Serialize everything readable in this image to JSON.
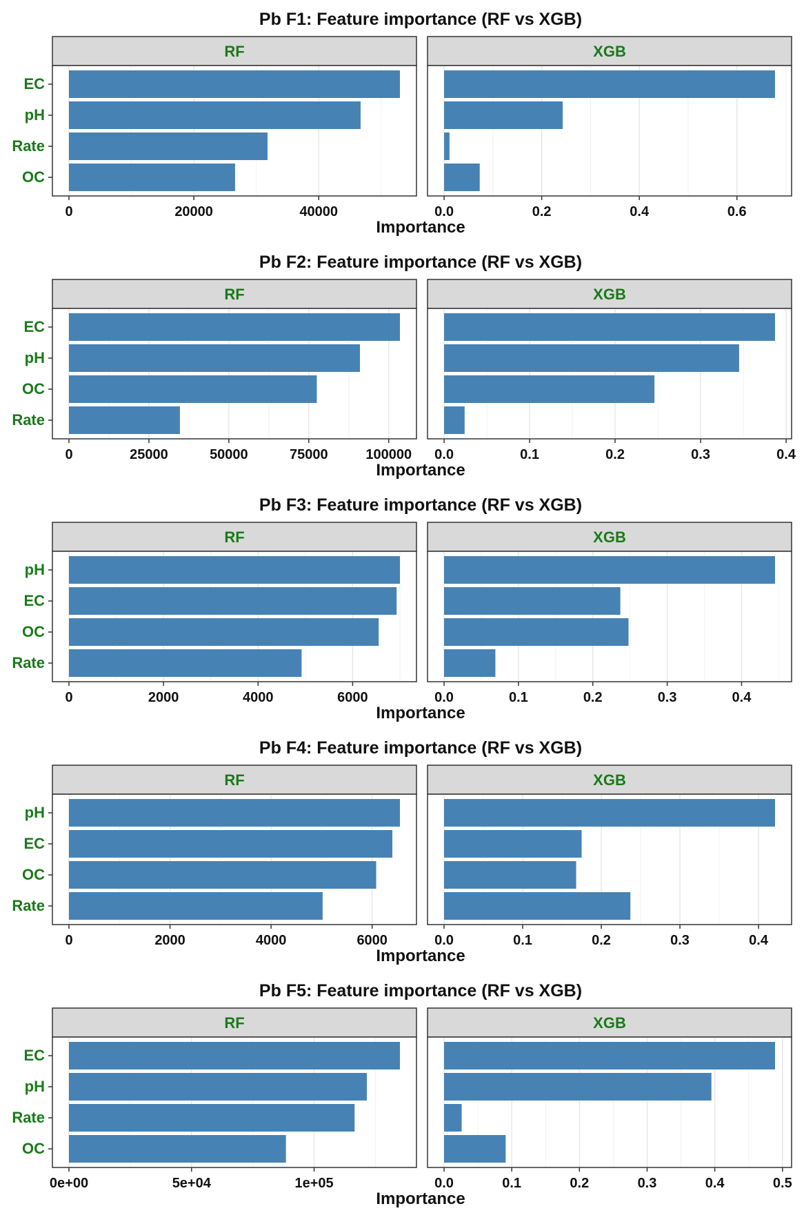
{
  "chart_data": [
    {
      "type": "bar",
      "orientation": "horizontal",
      "title": "Pb F1: Feature importance (RF vs XGB)",
      "xlabel": "Importance",
      "panels": [
        {
          "name": "RF",
          "categories": [
            "EC",
            "pH",
            "Rate",
            "OC"
          ],
          "values": [
            53000,
            46700,
            31800,
            26600
          ],
          "xlim": [
            -2650,
            55650
          ],
          "ticks": [
            0,
            20000,
            40000
          ],
          "tick_labels": [
            "0",
            "20000",
            "40000"
          ]
        },
        {
          "name": "XGB",
          "categories": [
            "EC",
            "pH",
            "Rate",
            "OC"
          ],
          "values": [
            0.678,
            0.243,
            0.011,
            0.073
          ],
          "xlim": [
            -0.034,
            0.712
          ],
          "ticks": [
            0.0,
            0.2,
            0.4,
            0.6
          ],
          "tick_labels": [
            "0.0",
            "0.2",
            "0.4",
            "0.6"
          ]
        }
      ],
      "grid": true,
      "bar_color": "#4682b4"
    },
    {
      "type": "bar",
      "orientation": "horizontal",
      "title": "Pb F2: Feature importance (RF vs XGB)",
      "xlabel": "Importance",
      "panels": [
        {
          "name": "RF",
          "categories": [
            "EC",
            "pH",
            "OC",
            "Rate"
          ],
          "values": [
            103500,
            91000,
            77500,
            34700
          ],
          "xlim": [
            -5175,
            108675
          ],
          "ticks": [
            0,
            25000,
            50000,
            75000,
            100000
          ],
          "tick_labels": [
            "0",
            "25000",
            "50000",
            "75000",
            "100000"
          ]
        },
        {
          "name": "XGB",
          "categories": [
            "EC",
            "pH",
            "OC",
            "Rate"
          ],
          "values": [
            0.387,
            0.345,
            0.246,
            0.024
          ],
          "xlim": [
            -0.0194,
            0.4064
          ],
          "ticks": [
            0.0,
            0.1,
            0.2,
            0.3,
            0.4
          ],
          "tick_labels": [
            "0.0",
            "0.1",
            "0.2",
            "0.3",
            "0.4"
          ]
        }
      ],
      "grid": true,
      "bar_color": "#4682b4"
    },
    {
      "type": "bar",
      "orientation": "horizontal",
      "title": "Pb F3: Feature importance (RF vs XGB)",
      "xlabel": "Importance",
      "panels": [
        {
          "name": "RF",
          "categories": [
            "pH",
            "EC",
            "OC",
            "Rate"
          ],
          "values": [
            7000,
            6930,
            6550,
            4920
          ],
          "xlim": [
            -350,
            7350
          ],
          "ticks": [
            0,
            2000,
            4000,
            6000
          ],
          "tick_labels": [
            "0",
            "2000",
            "4000",
            "6000"
          ]
        },
        {
          "name": "XGB",
          "categories": [
            "pH",
            "EC",
            "OC",
            "Rate"
          ],
          "values": [
            0.445,
            0.237,
            0.248,
            0.069
          ],
          "xlim": [
            -0.02225,
            0.46725
          ],
          "ticks": [
            0.0,
            0.1,
            0.2,
            0.3,
            0.4
          ],
          "tick_labels": [
            "0.0",
            "0.1",
            "0.2",
            "0.3",
            "0.4"
          ]
        }
      ],
      "grid": true,
      "bar_color": "#4682b4"
    },
    {
      "type": "bar",
      "orientation": "horizontal",
      "title": "Pb F4: Feature importance (RF vs XGB)",
      "xlabel": "Importance",
      "panels": [
        {
          "name": "RF",
          "categories": [
            "pH",
            "EC",
            "OC",
            "Rate"
          ],
          "values": [
            6550,
            6400,
            6080,
            5020
          ],
          "xlim": [
            -327.5,
            6877.5
          ],
          "ticks": [
            0,
            2000,
            4000,
            6000
          ],
          "tick_labels": [
            "0",
            "2000",
            "4000",
            "6000"
          ]
        },
        {
          "name": "XGB",
          "categories": [
            "pH",
            "EC",
            "OC",
            "Rate"
          ],
          "values": [
            0.421,
            0.175,
            0.168,
            0.237
          ],
          "xlim": [
            -0.02105,
            0.44205
          ],
          "ticks": [
            0.0,
            0.1,
            0.2,
            0.3,
            0.4
          ],
          "tick_labels": [
            "0.0",
            "0.1",
            "0.2",
            "0.3",
            "0.4"
          ]
        }
      ],
      "grid": true,
      "bar_color": "#4682b4"
    },
    {
      "type": "bar",
      "orientation": "horizontal",
      "title": "Pb F5: Feature importance (RF vs XGB)",
      "xlabel": "Importance",
      "panels": [
        {
          "name": "RF",
          "categories": [
            "EC",
            "pH",
            "Rate",
            "OC"
          ],
          "values": [
            135000,
            121500,
            116500,
            88500
          ],
          "xlim": [
            -6750,
            141750
          ],
          "ticks": [
            0,
            50000,
            100000
          ],
          "tick_labels": [
            "0e+00",
            "5e+04",
            "1e+05"
          ]
        },
        {
          "name": "XGB",
          "categories": [
            "EC",
            "pH",
            "Rate",
            "OC"
          ],
          "values": [
            0.489,
            0.395,
            0.026,
            0.091
          ],
          "xlim": [
            -0.02445,
            0.51345
          ],
          "ticks": [
            0.0,
            0.1,
            0.2,
            0.3,
            0.4,
            0.5
          ],
          "tick_labels": [
            "0.0",
            "0.1",
            "0.2",
            "0.3",
            "0.4",
            "0.5"
          ]
        }
      ],
      "grid": true,
      "bar_color": "#4682b4"
    }
  ]
}
